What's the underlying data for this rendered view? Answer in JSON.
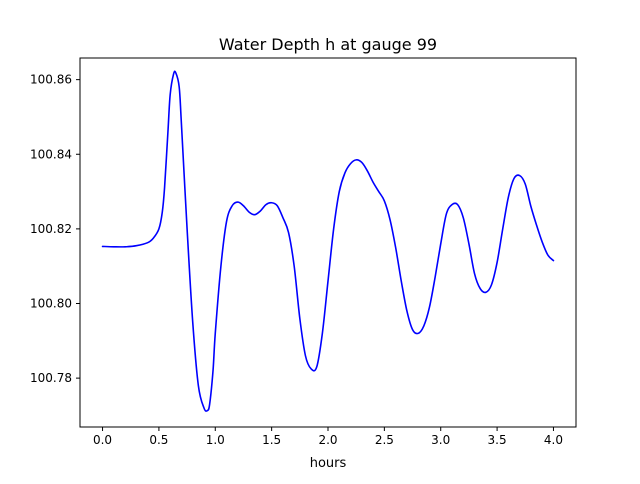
{
  "chart_data": {
    "type": "line",
    "title": "Water Depth h at gauge 99",
    "xlabel": "hours",
    "ylabel": "",
    "xlim": [
      -0.2,
      4.2
    ],
    "ylim": [
      100.7669,
      100.8658
    ],
    "x_ticks": [
      0.0,
      0.5,
      1.0,
      1.5,
      2.0,
      2.5,
      3.0,
      3.5,
      4.0
    ],
    "x_tick_labels": [
      "0.0",
      "0.5",
      "1.0",
      "1.5",
      "2.0",
      "2.5",
      "3.0",
      "3.5",
      "4.0"
    ],
    "y_ticks": [
      100.78,
      100.8,
      100.82,
      100.84,
      100.86
    ],
    "y_tick_labels": [
      "100.78",
      "100.80",
      "100.82",
      "100.84",
      "100.86"
    ],
    "grid": false,
    "legend": "none",
    "series": [
      {
        "color": "#0000ff",
        "x": [
          0.0,
          0.1,
          0.2,
          0.3,
          0.4,
          0.45,
          0.5,
          0.53,
          0.55,
          0.58,
          0.6,
          0.63,
          0.65,
          0.68,
          0.7,
          0.75,
          0.8,
          0.85,
          0.9,
          0.93,
          0.95,
          0.98,
          1.0,
          1.05,
          1.1,
          1.15,
          1.2,
          1.25,
          1.3,
          1.35,
          1.4,
          1.45,
          1.5,
          1.55,
          1.6,
          1.65,
          1.7,
          1.75,
          1.8,
          1.85,
          1.9,
          1.95,
          2.0,
          2.05,
          2.1,
          2.15,
          2.2,
          2.25,
          2.3,
          2.35,
          2.4,
          2.45,
          2.5,
          2.55,
          2.6,
          2.65,
          2.7,
          2.75,
          2.8,
          2.85,
          2.9,
          2.95,
          3.0,
          3.05,
          3.1,
          3.15,
          3.2,
          3.25,
          3.3,
          3.35,
          3.4,
          3.45,
          3.5,
          3.55,
          3.6,
          3.65,
          3.7,
          3.75,
          3.8,
          3.85,
          3.9,
          3.95,
          4.0
        ],
        "values": [
          100.8153,
          100.8152,
          100.8152,
          100.8155,
          100.8163,
          100.8175,
          100.82,
          100.8245,
          100.831,
          100.846,
          100.856,
          100.8615,
          100.8618,
          100.858,
          100.848,
          100.82,
          100.795,
          100.778,
          100.772,
          100.7713,
          100.773,
          100.782,
          100.792,
          100.81,
          100.822,
          100.8262,
          100.8272,
          100.8262,
          100.8245,
          100.8238,
          100.8248,
          100.8265,
          100.827,
          100.8262,
          100.823,
          100.819,
          100.81,
          100.796,
          100.786,
          100.7825,
          100.783,
          100.792,
          100.806,
          100.82,
          100.83,
          100.835,
          100.8375,
          100.8385,
          100.8378,
          100.8355,
          100.8325,
          100.83,
          100.8275,
          100.8225,
          100.815,
          100.806,
          100.798,
          100.793,
          100.792,
          100.794,
          100.799,
          100.807,
          100.816,
          100.824,
          100.8265,
          100.8265,
          100.823,
          100.816,
          100.808,
          100.804,
          100.803,
          100.805,
          100.811,
          100.82,
          100.8285,
          100.8335,
          100.8343,
          100.832,
          100.826,
          100.821,
          100.8165,
          100.813,
          100.8115
        ]
      }
    ]
  }
}
